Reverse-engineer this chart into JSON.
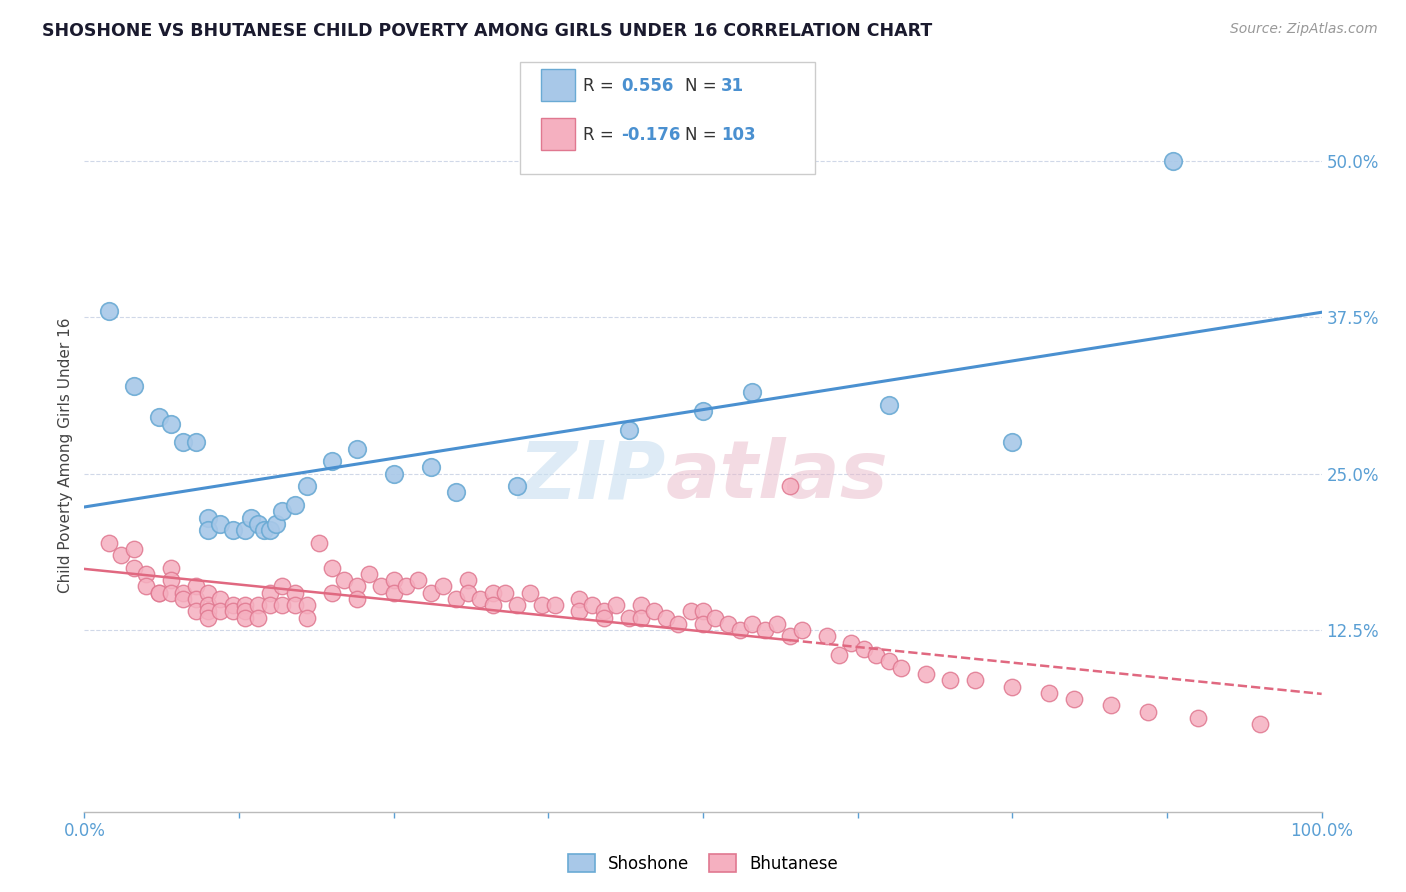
{
  "title": "SHOSHONE VS BHUTANESE CHILD POVERTY AMONG GIRLS UNDER 16 CORRELATION CHART",
  "source_text": "Source: ZipAtlas.com",
  "ylabel": "Child Poverty Among Girls Under 16",
  "xlim": [
    0,
    1
  ],
  "ylim": [
    -2,
    55
  ],
  "xticks": [
    0.0,
    0.125,
    0.25,
    0.375,
    0.5,
    0.625,
    0.75,
    0.875,
    1.0
  ],
  "xticklabels": [
    "0.0%",
    "",
    "",
    "",
    "",
    "",
    "",
    "",
    "100.0%"
  ],
  "ytick_positions": [
    12.5,
    25.0,
    37.5,
    50.0
  ],
  "ytick_labels": [
    "12.5%",
    "25.0%",
    "37.5%",
    "50.0%"
  ],
  "shoshone_color": "#a8c8e8",
  "shoshone_edge_color": "#6aaad4",
  "bhutanese_color": "#f5b0c0",
  "bhutanese_edge_color": "#e07890",
  "shoshone_line_color": "#4a90d0",
  "bhutanese_line_color": "#e06880",
  "watermark_color": "#d8eaf8",
  "grid_color": "#d0d8e8",
  "shoshone_points": [
    [
      0.02,
      38.0
    ],
    [
      0.04,
      32.0
    ],
    [
      0.06,
      29.5
    ],
    [
      0.07,
      29.0
    ],
    [
      0.08,
      27.5
    ],
    [
      0.09,
      27.5
    ],
    [
      0.1,
      21.5
    ],
    [
      0.1,
      20.5
    ],
    [
      0.11,
      21.0
    ],
    [
      0.12,
      20.5
    ],
    [
      0.13,
      20.5
    ],
    [
      0.135,
      21.5
    ],
    [
      0.14,
      21.0
    ],
    [
      0.145,
      20.5
    ],
    [
      0.15,
      20.5
    ],
    [
      0.155,
      21.0
    ],
    [
      0.16,
      22.0
    ],
    [
      0.17,
      22.5
    ],
    [
      0.18,
      24.0
    ],
    [
      0.2,
      26.0
    ],
    [
      0.22,
      27.0
    ],
    [
      0.25,
      25.0
    ],
    [
      0.28,
      25.5
    ],
    [
      0.3,
      23.5
    ],
    [
      0.35,
      24.0
    ],
    [
      0.44,
      28.5
    ],
    [
      0.5,
      30.0
    ],
    [
      0.54,
      31.5
    ],
    [
      0.65,
      30.5
    ],
    [
      0.75,
      27.5
    ],
    [
      0.88,
      50.0
    ]
  ],
  "bhutanese_points": [
    [
      0.02,
      19.5
    ],
    [
      0.03,
      18.5
    ],
    [
      0.04,
      17.5
    ],
    [
      0.04,
      19.0
    ],
    [
      0.05,
      17.0
    ],
    [
      0.05,
      16.0
    ],
    [
      0.06,
      15.5
    ],
    [
      0.06,
      15.5
    ],
    [
      0.07,
      17.5
    ],
    [
      0.07,
      16.5
    ],
    [
      0.07,
      15.5
    ],
    [
      0.08,
      15.5
    ],
    [
      0.08,
      15.0
    ],
    [
      0.09,
      16.0
    ],
    [
      0.09,
      15.0
    ],
    [
      0.09,
      14.0
    ],
    [
      0.1,
      15.5
    ],
    [
      0.1,
      14.5
    ],
    [
      0.1,
      14.0
    ],
    [
      0.1,
      13.5
    ],
    [
      0.11,
      15.0
    ],
    [
      0.11,
      14.0
    ],
    [
      0.12,
      14.5
    ],
    [
      0.12,
      14.0
    ],
    [
      0.13,
      14.5
    ],
    [
      0.13,
      14.0
    ],
    [
      0.13,
      13.5
    ],
    [
      0.14,
      14.5
    ],
    [
      0.14,
      13.5
    ],
    [
      0.15,
      15.5
    ],
    [
      0.15,
      14.5
    ],
    [
      0.16,
      16.0
    ],
    [
      0.16,
      14.5
    ],
    [
      0.17,
      15.5
    ],
    [
      0.17,
      14.5
    ],
    [
      0.18,
      14.5
    ],
    [
      0.18,
      13.5
    ],
    [
      0.19,
      19.5
    ],
    [
      0.2,
      17.5
    ],
    [
      0.2,
      15.5
    ],
    [
      0.21,
      16.5
    ],
    [
      0.22,
      16.0
    ],
    [
      0.22,
      15.0
    ],
    [
      0.23,
      17.0
    ],
    [
      0.24,
      16.0
    ],
    [
      0.25,
      16.5
    ],
    [
      0.25,
      15.5
    ],
    [
      0.26,
      16.0
    ],
    [
      0.27,
      16.5
    ],
    [
      0.28,
      15.5
    ],
    [
      0.29,
      16.0
    ],
    [
      0.3,
      15.0
    ],
    [
      0.31,
      16.5
    ],
    [
      0.31,
      15.5
    ],
    [
      0.32,
      15.0
    ],
    [
      0.33,
      15.5
    ],
    [
      0.33,
      14.5
    ],
    [
      0.34,
      15.5
    ],
    [
      0.35,
      14.5
    ],
    [
      0.36,
      15.5
    ],
    [
      0.37,
      14.5
    ],
    [
      0.38,
      14.5
    ],
    [
      0.4,
      15.0
    ],
    [
      0.4,
      14.0
    ],
    [
      0.41,
      14.5
    ],
    [
      0.42,
      14.0
    ],
    [
      0.42,
      13.5
    ],
    [
      0.43,
      14.5
    ],
    [
      0.44,
      13.5
    ],
    [
      0.45,
      14.5
    ],
    [
      0.45,
      13.5
    ],
    [
      0.46,
      14.0
    ],
    [
      0.47,
      13.5
    ],
    [
      0.48,
      13.0
    ],
    [
      0.49,
      14.0
    ],
    [
      0.5,
      14.0
    ],
    [
      0.5,
      13.0
    ],
    [
      0.51,
      13.5
    ],
    [
      0.52,
      13.0
    ],
    [
      0.53,
      12.5
    ],
    [
      0.54,
      13.0
    ],
    [
      0.55,
      12.5
    ],
    [
      0.56,
      13.0
    ],
    [
      0.57,
      12.0
    ],
    [
      0.57,
      24.0
    ],
    [
      0.58,
      12.5
    ],
    [
      0.6,
      12.0
    ],
    [
      0.61,
      10.5
    ],
    [
      0.62,
      11.5
    ],
    [
      0.63,
      11.0
    ],
    [
      0.64,
      10.5
    ],
    [
      0.65,
      10.0
    ],
    [
      0.66,
      9.5
    ],
    [
      0.68,
      9.0
    ],
    [
      0.7,
      8.5
    ],
    [
      0.72,
      8.5
    ],
    [
      0.75,
      8.0
    ],
    [
      0.78,
      7.5
    ],
    [
      0.8,
      7.0
    ],
    [
      0.83,
      6.5
    ],
    [
      0.86,
      6.0
    ],
    [
      0.9,
      5.5
    ],
    [
      0.95,
      5.0
    ]
  ],
  "background_color": "#ffffff"
}
